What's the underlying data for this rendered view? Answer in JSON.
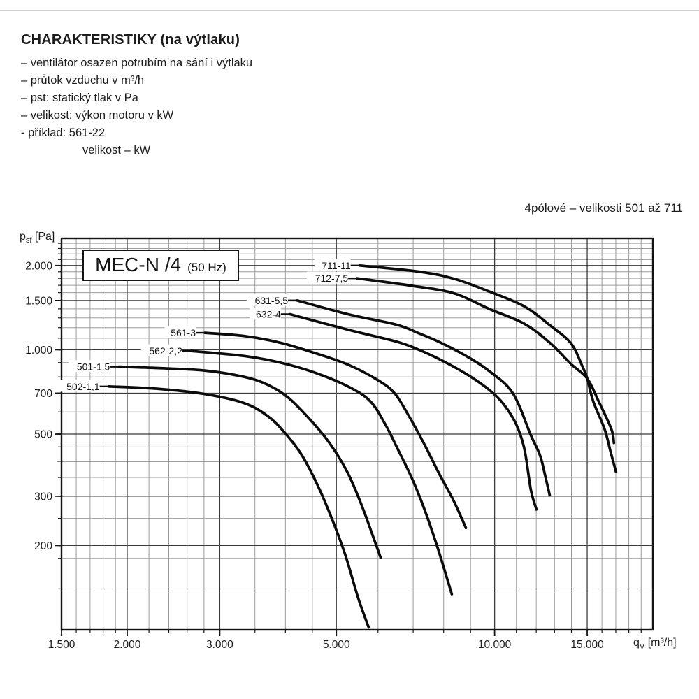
{
  "header": {
    "title": "CHARAKTERISTIKY (na výtlaku)",
    "bullets": [
      "– ventilátor osazen potrubím na sání i výtlaku",
      "– průtok vzduchu v m³/h",
      "– pst: statický tlak v Pa",
      "– velikost: výkon motoru v kW",
      "- příklad: 561-22"
    ],
    "indented_line": "velikost – kW"
  },
  "chart": {
    "corner_title": "4pólové – velikosti 501 až 711",
    "box_label": {
      "main": "MEC-N /4",
      "suffix": "(50 Hz)"
    },
    "y_axis_label": {
      "base": "p",
      "sub": "sf",
      "rest": " [Pa]"
    },
    "x_axis_label": {
      "base": "q",
      "sub": "V",
      "rest": " [m³/h]"
    }
  },
  "chart_data": {
    "type": "line",
    "title": "MEC-N /4 (50 Hz)",
    "subtitle": "4pólové – velikosti 501 až 711",
    "xlabel": "qV [m³/h]",
    "ylabel": "psf [Pa]",
    "x_scale": "log",
    "y_scale": "log",
    "xlim": [
      1500,
      20000
    ],
    "ylim": [
      100,
      2500
    ],
    "grid": "on",
    "legend_position": "inline-labels",
    "x_ticks": [
      {
        "v": 1500,
        "label": "1.500"
      },
      {
        "v": 2000,
        "label": "2.000"
      },
      {
        "v": 3000,
        "label": "3.000"
      },
      {
        "v": 5000,
        "label": "5.000"
      },
      {
        "v": 10000,
        "label": "10.000"
      },
      {
        "v": 15000,
        "label": "15.000"
      }
    ],
    "y_ticks": [
      {
        "v": 200,
        "label": "200"
      },
      {
        "v": 300,
        "label": "300"
      },
      {
        "v": 500,
        "label": "500"
      },
      {
        "v": 700,
        "label": "700"
      },
      {
        "v": 1000,
        "label": "1.000"
      },
      {
        "v": 1500,
        "label": "1.500"
      },
      {
        "v": 2000,
        "label": "2.000"
      }
    ],
    "x_major_grid": [
      2000,
      3000,
      5000,
      10000,
      15000
    ],
    "x_minor_grid": [
      1600,
      1700,
      1800,
      1900,
      2200,
      2400,
      2600,
      2800,
      3500,
      4000,
      4500,
      6000,
      7000,
      8000,
      9000,
      11000,
      12000,
      13000,
      14000,
      16000,
      17000,
      18000,
      19000
    ],
    "y_major_grid": [
      200,
      300,
      400,
      500,
      700,
      1000,
      1500,
      2000
    ],
    "y_minor_grid": [
      140,
      180,
      250,
      350,
      450,
      600,
      800,
      900,
      1100,
      1200,
      1300,
      1400,
      1600,
      1700,
      1800,
      1900,
      2100,
      2200,
      2300,
      2400
    ],
    "series": [
      {
        "name": "711-11",
        "points": [
          [
            5540,
            2000
          ],
          [
            7200,
            1900
          ],
          [
            8400,
            1790
          ],
          [
            9760,
            1615
          ],
          [
            11380,
            1430
          ],
          [
            12730,
            1225
          ],
          [
            13970,
            1055
          ],
          [
            14660,
            880
          ],
          [
            15000,
            790
          ],
          [
            15400,
            655
          ],
          [
            16180,
            522
          ],
          [
            16610,
            434
          ],
          [
            17020,
            366
          ]
        ]
      },
      {
        "name": "712-7,5",
        "points": [
          [
            5480,
            1800
          ],
          [
            7000,
            1690
          ],
          [
            8380,
            1590
          ],
          [
            9760,
            1400
          ],
          [
            11380,
            1240
          ],
          [
            12730,
            1060
          ],
          [
            13970,
            890
          ],
          [
            15000,
            790
          ],
          [
            15770,
            655
          ],
          [
            16680,
            520
          ],
          [
            16860,
            465
          ]
        ]
      },
      {
        "name": "631-5,5",
        "points": [
          [
            4210,
            1500
          ],
          [
            5260,
            1340
          ],
          [
            6500,
            1230
          ],
          [
            7180,
            1145
          ],
          [
            7900,
            1060
          ],
          [
            8830,
            950
          ],
          [
            9760,
            840
          ],
          [
            10830,
            700
          ],
          [
            11720,
            495
          ],
          [
            12200,
            420
          ],
          [
            12480,
            355
          ],
          [
            12730,
            302
          ]
        ]
      },
      {
        "name": "632-4",
        "points": [
          [
            4080,
            1340
          ],
          [
            5260,
            1180
          ],
          [
            6500,
            1070
          ],
          [
            7180,
            1000
          ],
          [
            7900,
            920
          ],
          [
            8830,
            820
          ],
          [
            9760,
            720
          ],
          [
            10400,
            640
          ],
          [
            11000,
            540
          ],
          [
            11400,
            440
          ],
          [
            11720,
            316
          ],
          [
            12010,
            269
          ]
        ]
      },
      {
        "name": "561-3",
        "points": [
          [
            2810,
            1150
          ],
          [
            3340,
            1120
          ],
          [
            3910,
            1060
          ],
          [
            4540,
            975
          ],
          [
            5260,
            885
          ],
          [
            5990,
            780
          ],
          [
            6450,
            700
          ],
          [
            6870,
            580
          ],
          [
            7350,
            460
          ],
          [
            7850,
            360
          ],
          [
            8350,
            290
          ],
          [
            8820,
            231
          ]
        ]
      },
      {
        "name": "562-2,2",
        "points": [
          [
            2650,
            990
          ],
          [
            3340,
            950
          ],
          [
            3910,
            900
          ],
          [
            4540,
            830
          ],
          [
            5260,
            740
          ],
          [
            5800,
            655
          ],
          [
            6200,
            540
          ],
          [
            6550,
            440
          ],
          [
            6950,
            350
          ],
          [
            7350,
            270
          ],
          [
            7800,
            195
          ],
          [
            8290,
            134
          ]
        ]
      },
      {
        "name": "501-1,5",
        "points": [
          [
            1930,
            870
          ],
          [
            2300,
            860
          ],
          [
            2810,
            843
          ],
          [
            3340,
            800
          ],
          [
            3700,
            750
          ],
          [
            4050,
            675
          ],
          [
            4450,
            565
          ],
          [
            4850,
            465
          ],
          [
            5250,
            365
          ],
          [
            5600,
            275
          ],
          [
            5900,
            210
          ],
          [
            6070,
            181
          ]
        ]
      },
      {
        "name": "502-1,1",
        "points": [
          [
            1845,
            740
          ],
          [
            2300,
            725
          ],
          [
            2810,
            695
          ],
          [
            3340,
            645
          ],
          [
            3700,
            580
          ],
          [
            3990,
            505
          ],
          [
            4300,
            420
          ],
          [
            4600,
            330
          ],
          [
            4900,
            250
          ],
          [
            5200,
            185
          ],
          [
            5500,
            130
          ],
          [
            5760,
            102
          ]
        ]
      }
    ]
  }
}
